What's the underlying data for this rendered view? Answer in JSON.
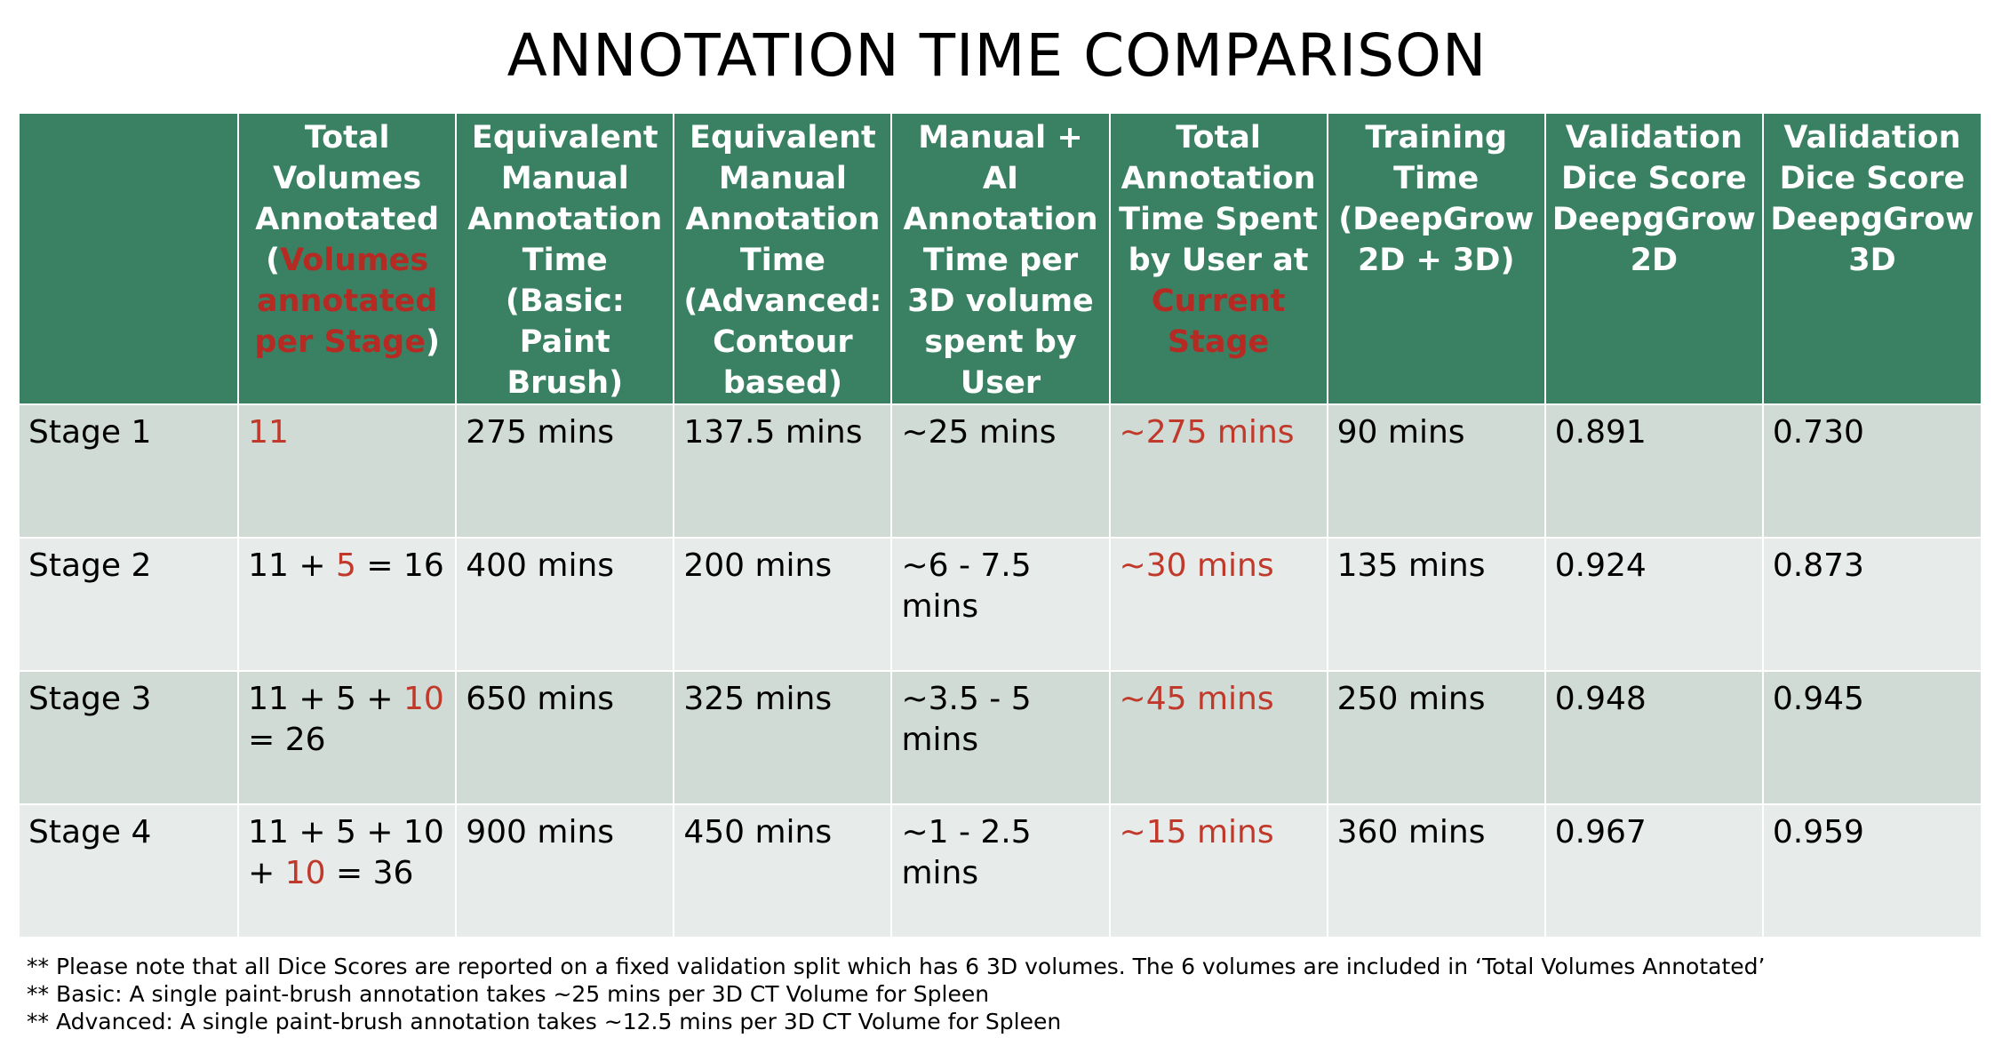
{
  "title": "ANNOTATION TIME COMPARISON",
  "colors": {
    "header_bg": "#3a8163",
    "highlight": "#c0392b",
    "row_odd": "#cfdbd4",
    "row_even": "#e7ecea"
  },
  "headers": {
    "h0": "",
    "h1a": "Total Volumes Annotated (",
    "h1b": "Volumes annotated per Stage",
    "h1c": ")",
    "h2": "Equivalent Manual Annotation Time (Basic: Paint Brush)",
    "h3": "Equivalent Manual Annotation Time (Advanced: Contour based)",
    "h4": "Manual + AI Annotation Time per 3D volume spent by User",
    "h5a": "Total Annotation Time Spent by User at ",
    "h5b": "Current Stage",
    "h6": "Training Time (DeepGrow 2D + 3D)",
    "h7": "Validation Dice Score DeepgGrow 2D",
    "h8": "Validation Dice Score DeepgGrow 3D"
  },
  "rows": [
    {
      "stage": "Stage 1",
      "vol_a": "",
      "vol_hl": "11",
      "vol_b": "",
      "basic": "275 mins",
      "advanced": "137.5 mins",
      "ai": "~25 mins",
      "total": "~275 mins",
      "training": "90 mins",
      "dice2d": "0.891",
      "dice3d": "0.730"
    },
    {
      "stage": "Stage 2",
      "vol_a": "11 + ",
      "vol_hl": "5",
      "vol_b": " = 16",
      "basic": "400 mins",
      "advanced": "200 mins",
      "ai": "~6 - 7.5 mins",
      "total": "~30 mins",
      "training": "135 mins",
      "dice2d": "0.924",
      "dice3d": "0.873"
    },
    {
      "stage": "Stage 3",
      "vol_a": "11 + 5 + ",
      "vol_hl": "10",
      "vol_b": " = 26",
      "basic": "650 mins",
      "advanced": "325 mins",
      "ai": "~3.5 - 5 mins",
      "total": "~45 mins",
      "training": "250 mins",
      "dice2d": "0.948",
      "dice3d": "0.945"
    },
    {
      "stage": "Stage 4",
      "vol_a": "11 + 5 + 10 + ",
      "vol_hl": "10",
      "vol_b": " = 36",
      "basic": "900 mins",
      "advanced": "450 mins",
      "ai": "~1 - 2.5 mins",
      "total": "~15 mins",
      "training": "360 mins",
      "dice2d": "0.967",
      "dice3d": "0.959"
    }
  ],
  "notes": [
    "** Please note that all Dice Scores are reported on a fixed validation split which has 6 3D volumes. The 6 volumes are included in ‘Total Volumes Annotated’",
    "** Basic: A single paint-brush annotation takes ~25 mins per 3D CT Volume for Spleen",
    "** Advanced: A single paint-brush annotation takes ~12.5 mins per 3D CT Volume for Spleen"
  ]
}
